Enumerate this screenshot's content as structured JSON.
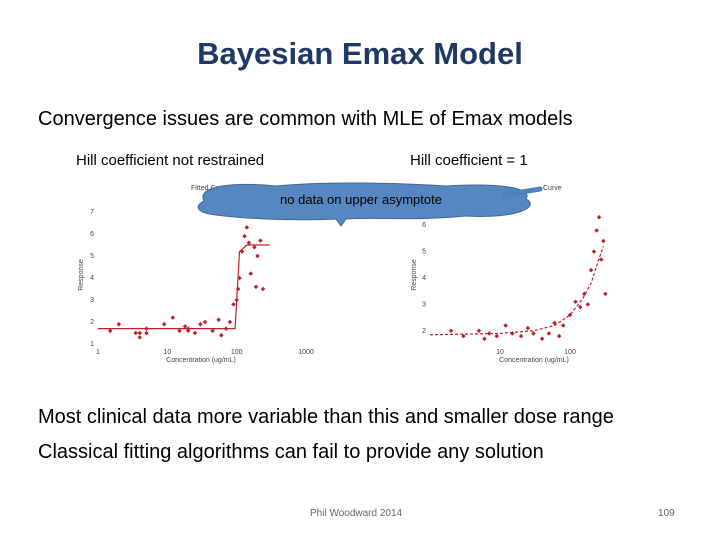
{
  "slide": {
    "title": "Bayesian Emax Model",
    "lead": "Convergence issues are common with MLE of Emax models",
    "bullet1": "Most clinical data more variable than this and smaller dose range",
    "bullet2": "Classical fitting algorithms can fail to provide any solution",
    "footer_author": "Phil Woodward 2014",
    "page_number": "109",
    "callout": "no data on upper asymptote"
  },
  "charts": {
    "left_label": "Hill coefficient not restrained",
    "right_label": "Hill coefficient = 1",
    "left_title_fragment": "Fitted Curv",
    "right_title_fragment": "Curve",
    "y_axis_label": "Response",
    "left_x_axis_label": "Concentration (ug/mL)",
    "right_x_axis_label": "Concentration (ug/mL)",
    "left_y_ticks": [
      "7",
      "6",
      "5",
      "4",
      "3",
      "2",
      "1"
    ],
    "right_y_ticks": [
      "6",
      "5",
      "4",
      "3",
      "2"
    ],
    "left_x_ticks": [
      "1",
      "10",
      "100",
      "1000"
    ],
    "right_x_ticks": [
      "10",
      "100"
    ]
  },
  "chart_data": [
    {
      "type": "scatter",
      "title": "",
      "xlabel": "Concentration (ug/mL)",
      "ylabel": "Response",
      "xscale": "log",
      "xlim": [
        1,
        1000
      ],
      "ylim": [
        1,
        7
      ],
      "color": "#c0202a",
      "series": [
        {
          "points": [
            [
              1.5,
              1.6
            ],
            [
              2,
              1.9
            ],
            [
              3.5,
              1.5
            ],
            [
              4,
              1.5
            ],
            [
              4,
              1.3
            ],
            [
              5,
              1.7
            ],
            [
              5,
              1.5
            ],
            [
              9,
              1.9
            ],
            [
              12,
              2.2
            ],
            [
              15,
              1.6
            ],
            [
              18,
              1.8
            ],
            [
              20,
              1.6
            ],
            [
              20,
              1.7
            ],
            [
              25,
              1.5
            ],
            [
              30,
              1.9
            ],
            [
              35,
              2.0
            ],
            [
              45,
              1.6
            ],
            [
              55,
              2.1
            ],
            [
              60,
              1.4
            ],
            [
              70,
              1.7
            ],
            [
              80,
              2.0
            ],
            [
              90,
              2.8
            ],
            [
              100,
              3.0
            ],
            [
              105,
              3.5
            ],
            [
              110,
              4.0
            ],
            [
              120,
              5.2
            ],
            [
              130,
              5.9
            ],
            [
              140,
              6.3
            ],
            [
              150,
              5.6
            ],
            [
              160,
              4.2
            ],
            [
              180,
              5.4
            ],
            [
              190,
              3.6
            ],
            [
              200,
              5.0
            ],
            [
              220,
              5.7
            ],
            [
              240,
              3.5
            ]
          ]
        },
        {
          "name": "fit",
          "line": [
            [
              1,
              1.7
            ],
            [
              95,
              1.7
            ],
            [
              100,
              3.0
            ],
            [
              110,
              5.2
            ],
            [
              140,
              5.5
            ],
            [
              300,
              5.5
            ]
          ]
        }
      ]
    },
    {
      "type": "scatter",
      "title": "",
      "xlabel": "Concentration (ug/mL)",
      "ylabel": "Response",
      "xscale": "log",
      "xlim": [
        1,
        1000
      ],
      "ylim": [
        1.5,
        6.5
      ],
      "color": "#c0202a",
      "series": [
        {
          "points": [
            [
              2,
              2.0
            ],
            [
              3,
              1.8
            ],
            [
              5,
              2.0
            ],
            [
              6,
              1.7
            ],
            [
              7,
              1.9
            ],
            [
              9,
              1.8
            ],
            [
              12,
              2.2
            ],
            [
              15,
              1.9
            ],
            [
              20,
              1.8
            ],
            [
              25,
              2.1
            ],
            [
              30,
              1.9
            ],
            [
              40,
              1.7
            ],
            [
              50,
              1.9
            ],
            [
              60,
              2.3
            ],
            [
              70,
              1.8
            ],
            [
              80,
              2.2
            ],
            [
              100,
              2.6
            ],
            [
              120,
              3.1
            ],
            [
              140,
              2.9
            ],
            [
              160,
              3.4
            ],
            [
              180,
              3.0
            ],
            [
              200,
              4.3
            ],
            [
              220,
              5.0
            ],
            [
              240,
              5.8
            ],
            [
              260,
              6.3
            ],
            [
              280,
              4.7
            ],
            [
              300,
              5.4
            ],
            [
              320,
              3.4
            ]
          ]
        },
        {
          "name": "fit",
          "line": [
            [
              1,
              1.85
            ],
            [
              10,
              1.9
            ],
            [
              30,
              2.0
            ],
            [
              60,
              2.2
            ],
            [
              100,
              2.6
            ],
            [
              150,
              3.2
            ],
            [
              200,
              3.8
            ],
            [
              250,
              4.6
            ],
            [
              300,
              5.2
            ]
          ]
        }
      ]
    }
  ]
}
